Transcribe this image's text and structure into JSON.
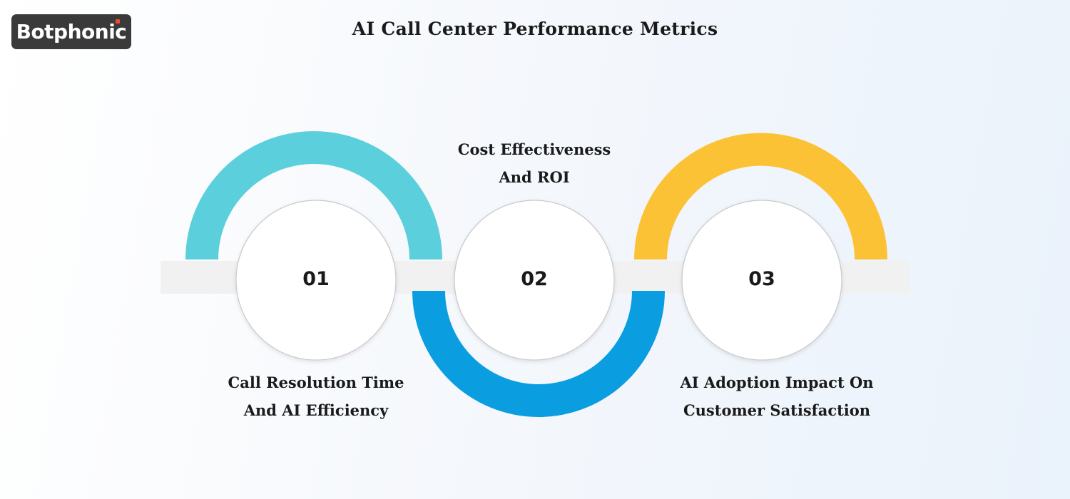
{
  "brand": {
    "name": "Botphonic",
    "accent_color": "#ef4b27"
  },
  "title": "AI Call Center Performance Metrics",
  "steps": [
    {
      "number": "01",
      "label_line1": "Call Resolution Time",
      "label_line2": "And AI Efficiency",
      "color": "#5bcfdc"
    },
    {
      "number": "02",
      "label_line1": "Cost Effectiveness",
      "label_line2": "And ROI",
      "color": "#0a9ee0"
    },
    {
      "number": "03",
      "label_line1": "AI Adoption Impact On",
      "label_line2": "Customer Satisfaction",
      "color": "#fcc235"
    }
  ]
}
